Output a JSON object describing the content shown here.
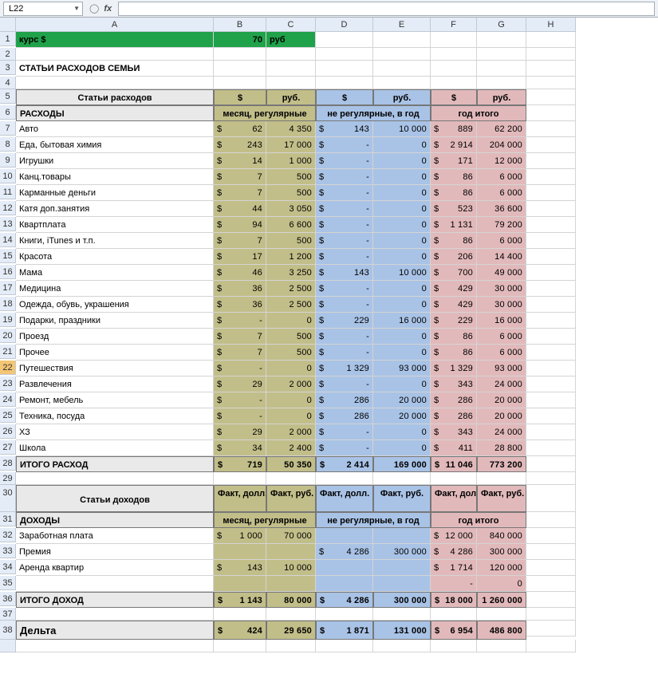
{
  "namebox": "L22",
  "cols": [
    "",
    "A",
    "B",
    "C",
    "D",
    "E",
    "F",
    "G",
    "H"
  ],
  "row1": {
    "a": "курс $",
    "b": "70",
    "c": "руб"
  },
  "row3": "СТАТЬИ РАСХОДОВ СЕМЬИ",
  "hdr5": {
    "a": "Статьи расходов",
    "b": "$",
    "c": "руб.",
    "d": "$",
    "e": "руб.",
    "f": "$",
    "g": "руб."
  },
  "hdr6": {
    "a": "РАСХОДЫ",
    "bc": "месяц, регулярные",
    "de": "не регулярные, в год",
    "fg": "год итого"
  },
  "expenses": [
    {
      "n": "7",
      "a": "Авто",
      "b": "62",
      "c": "4 350",
      "d": "143",
      "e": "10 000",
      "f": "889",
      "g": "62 200"
    },
    {
      "n": "8",
      "a": "Еда, бытовая химия",
      "b": "243",
      "c": "17 000",
      "d": "-",
      "e": "0",
      "f": "2 914",
      "g": "204 000"
    },
    {
      "n": "9",
      "a": "Игрушки",
      "b": "14",
      "c": "1 000",
      "d": "-",
      "e": "0",
      "f": "171",
      "g": "12 000"
    },
    {
      "n": "10",
      "a": "Канц.товары",
      "b": "7",
      "c": "500",
      "d": "-",
      "e": "0",
      "f": "86",
      "g": "6 000"
    },
    {
      "n": "11",
      "a": "Карманные деньги",
      "b": "7",
      "c": "500",
      "d": "-",
      "e": "0",
      "f": "86",
      "g": "6 000"
    },
    {
      "n": "12",
      "a": "Катя доп.занятия",
      "b": "44",
      "c": "3 050",
      "d": "-",
      "e": "0",
      "f": "523",
      "g": "36 600"
    },
    {
      "n": "13",
      "a": "Квартплата",
      "b": "94",
      "c": "6 600",
      "d": "-",
      "e": "0",
      "f": "1 131",
      "g": "79 200"
    },
    {
      "n": "14",
      "a": "Книги, iTunes и т.п.",
      "b": "7",
      "c": "500",
      "d": "-",
      "e": "0",
      "f": "86",
      "g": "6 000"
    },
    {
      "n": "15",
      "a": "Красота",
      "b": "17",
      "c": "1 200",
      "d": "-",
      "e": "0",
      "f": "206",
      "g": "14 400"
    },
    {
      "n": "16",
      "a": "Мама",
      "b": "46",
      "c": "3 250",
      "d": "143",
      "e": "10 000",
      "f": "700",
      "g": "49 000"
    },
    {
      "n": "17",
      "a": "Медицина",
      "b": "36",
      "c": "2 500",
      "d": "-",
      "e": "0",
      "f": "429",
      "g": "30 000"
    },
    {
      "n": "18",
      "a": "Одежда, обувь, украшения",
      "b": "36",
      "c": "2 500",
      "d": "-",
      "e": "0",
      "f": "429",
      "g": "30 000"
    },
    {
      "n": "19",
      "a": "Подарки, праздники",
      "b": "-",
      "c": "0",
      "d": "229",
      "e": "16 000",
      "f": "229",
      "g": "16 000"
    },
    {
      "n": "20",
      "a": "Проезд",
      "b": "7",
      "c": "500",
      "d": "-",
      "e": "0",
      "f": "86",
      "g": "6 000"
    },
    {
      "n": "21",
      "a": "Прочее",
      "b": "7",
      "c": "500",
      "d": "-",
      "e": "0",
      "f": "86",
      "g": "6 000"
    },
    {
      "n": "22",
      "a": "Путешествия",
      "b": "-",
      "c": "0",
      "d": "1 329",
      "e": "93 000",
      "f": "1 329",
      "g": "93 000",
      "sel": true
    },
    {
      "n": "23",
      "a": "Развлечения",
      "b": "29",
      "c": "2 000",
      "d": "-",
      "e": "0",
      "f": "343",
      "g": "24 000"
    },
    {
      "n": "24",
      "a": "Ремонт, мебель",
      "b": "-",
      "c": "0",
      "d": "286",
      "e": "20 000",
      "f": "286",
      "g": "20 000"
    },
    {
      "n": "25",
      "a": "Техника, посуда",
      "b": "-",
      "c": "0",
      "d": "286",
      "e": "20 000",
      "f": "286",
      "g": "20 000"
    },
    {
      "n": "26",
      "a": "ХЗ",
      "b": "29",
      "c": "2 000",
      "d": "-",
      "e": "0",
      "f": "343",
      "g": "24 000"
    },
    {
      "n": "27",
      "a": "Школа",
      "b": "34",
      "c": "2 400",
      "d": "-",
      "e": "0",
      "f": "411",
      "g": "28 800"
    }
  ],
  "exp_total": {
    "n": "28",
    "a": "ИТОГО РАСХОД",
    "b": "719",
    "c": "50 350",
    "d": "2 414",
    "e": "169 000",
    "f": "11 046",
    "g": "773 200"
  },
  "hdr30": {
    "a": "Статьи доходов",
    "b": "Факт, долл.",
    "c": "Факт, руб.",
    "d": "Факт, долл.",
    "e": "Факт, руб.",
    "f": "Факт, долл.",
    "g": "Факт, руб."
  },
  "hdr31": {
    "a": "ДОХОДЫ",
    "bc": "месяц, регулярные",
    "de": "не регулярные, в год",
    "fg": "год итого"
  },
  "income": [
    {
      "n": "32",
      "a": "Заработная плата",
      "b": "1 000",
      "c": "70 000",
      "d": "",
      "e": "",
      "f": "12 000",
      "g": "840 000"
    },
    {
      "n": "33",
      "a": "Премия",
      "b": "",
      "c": "",
      "d": "4 286",
      "e": "300 000",
      "f": "4 286",
      "g": "300 000"
    },
    {
      "n": "34",
      "a": "Аренда квартир",
      "b": "143",
      "c": "10 000",
      "d": "",
      "e": "",
      "f": "1 714",
      "g": "120 000"
    },
    {
      "n": "35",
      "a": "",
      "b": "",
      "c": "",
      "d": "",
      "e": "",
      "f": "-",
      "g": "0"
    }
  ],
  "inc_total": {
    "n": "36",
    "a": "ИТОГО ДОХОД",
    "b": "1 143",
    "c": "80 000",
    "d": "4 286",
    "e": "300 000",
    "f": "18 000",
    "g": "1 260 000"
  },
  "delta": {
    "n": "38",
    "a": "Дельта",
    "b": "424",
    "c": "29 650",
    "d": "1 871",
    "e": "131 000",
    "f": "6 954",
    "g": "486 800"
  },
  "colors": {
    "green": "#1fa24a",
    "grey": "#e9e9e9",
    "olive": "#c2be89",
    "blue": "#a9c3e6",
    "pink": "#e2b9bb"
  }
}
